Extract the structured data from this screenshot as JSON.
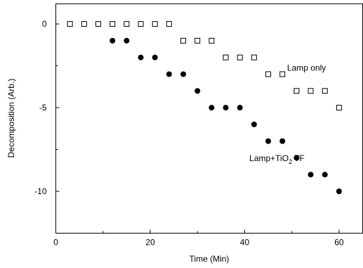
{
  "chart_data": {
    "type": "scatter",
    "xlabel": "Time (Min)",
    "ylabel": "Decomposition (Arb.)",
    "xlim": [
      0,
      65
    ],
    "ylim": [
      -12.5,
      1.2
    ],
    "xticks": [
      0,
      20,
      40,
      60
    ],
    "yticks": [
      0,
      -5,
      -10
    ],
    "grid": false,
    "series": [
      {
        "name": "Lamp only",
        "marker": "open-square",
        "x": [
          3,
          6,
          9,
          12,
          15,
          18,
          21,
          24,
          27,
          30,
          33,
          36,
          39,
          42,
          45,
          48,
          51,
          54,
          57,
          60
        ],
        "y": [
          0,
          0,
          0,
          0,
          0,
          0,
          0,
          0,
          -1,
          -1,
          -1,
          -2,
          -2,
          -2,
          -3,
          -3,
          -4,
          -4,
          -4,
          -5
        ]
      },
      {
        "name": "Lamp+TiO",
        "name_subscript": "2",
        "name_suffix": " TF",
        "marker": "filled-circle",
        "x": [
          12,
          15,
          18,
          21,
          24,
          27,
          30,
          33,
          36,
          39,
          42,
          45,
          48,
          51,
          54,
          57,
          60
        ],
        "y": [
          -1,
          -1,
          -2,
          -2,
          -3,
          -3,
          -4,
          -5,
          -5,
          -5,
          -6,
          -7,
          -7,
          -8,
          -9,
          -9,
          -10
        ]
      }
    ],
    "annotations": [
      {
        "series": 0,
        "x": 49,
        "y": -2.8
      },
      {
        "series": 1,
        "x": 41,
        "y": -8.2
      }
    ]
  }
}
